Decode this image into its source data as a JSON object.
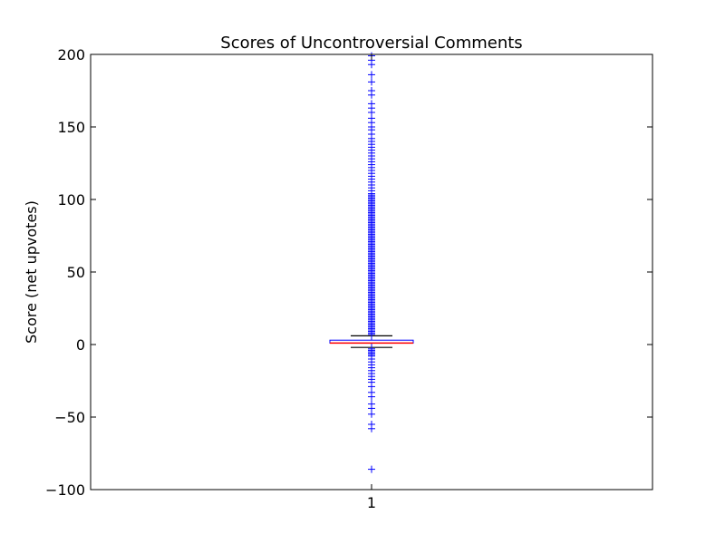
{
  "chart_data": {
    "type": "box",
    "title": "Scores of Uncontroversial Comments",
    "xlabel": "",
    "ylabel": "Score (net upvotes)",
    "ylim": [
      -100,
      200
    ],
    "yticks": [
      -100,
      -50,
      0,
      50,
      100,
      150,
      200
    ],
    "ytick_labels": [
      "−100",
      "−50",
      "0",
      "50",
      "100",
      "150",
      "200"
    ],
    "categories": [
      "1"
    ],
    "grid": false,
    "box": {
      "category": "1",
      "whisker_low": -2,
      "q1": 1,
      "median": 1,
      "q3": 3,
      "whisker_high": 6,
      "outliers": [
        -86,
        -58,
        -55,
        -48,
        -44,
        -41,
        -36,
        -33,
        -29,
        -26,
        -24,
        -22,
        -20,
        -18,
        -16,
        -14,
        -12,
        -10,
        -8,
        -7,
        -6,
        -5,
        -4,
        -3,
        7,
        8,
        9,
        10,
        11,
        12,
        13,
        14,
        15,
        16,
        17,
        18,
        19,
        20,
        21,
        22,
        23,
        24,
        25,
        26,
        27,
        28,
        29,
        30,
        31,
        32,
        33,
        34,
        35,
        36,
        37,
        38,
        39,
        40,
        41,
        42,
        43,
        44,
        45,
        46,
        47,
        48,
        49,
        50,
        51,
        52,
        53,
        54,
        55,
        56,
        57,
        58,
        59,
        60,
        61,
        62,
        63,
        64,
        65,
        66,
        67,
        68,
        69,
        70,
        71,
        72,
        73,
        74,
        75,
        76,
        77,
        78,
        79,
        80,
        81,
        82,
        83,
        84,
        85,
        86,
        87,
        88,
        89,
        90,
        91,
        92,
        93,
        94,
        95,
        96,
        97,
        98,
        99,
        100,
        101,
        102,
        103,
        104,
        106,
        108,
        110,
        112,
        114,
        116,
        118,
        120,
        122,
        124,
        126,
        128,
        130,
        132,
        134,
        136,
        138,
        140,
        142,
        145,
        148,
        150,
        153,
        156,
        160,
        163,
        166,
        172,
        175,
        181,
        186,
        193,
        196,
        199
      ]
    },
    "colors": {
      "box": "#0000ff",
      "median": "#ff0000",
      "whisker": "#000000",
      "outlier": "#0000ff",
      "axes": "#000000"
    }
  }
}
